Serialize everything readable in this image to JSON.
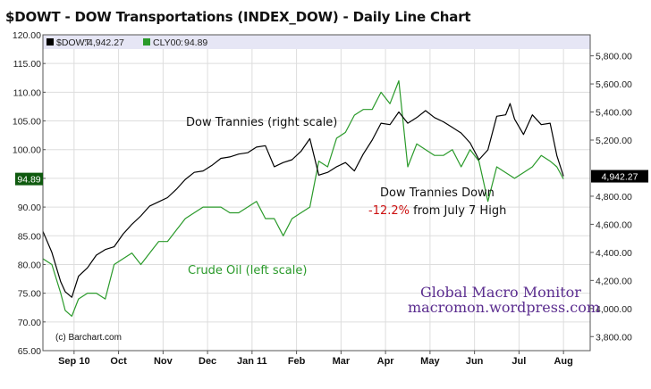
{
  "title": "$DOWT - DOW Transportations (INDEX_DOW) - Daily Line Chart",
  "copyright": "(c) Barchart.com",
  "annotations": {
    "dow_label": "Dow Trannies (right scale)",
    "crude_label": "Crude Oil (left scale)",
    "down_label": "Dow Trannies Down",
    "pct": "-12.2%",
    "pct_rest": " from July 7 High"
  },
  "watermark": {
    "line1": "Global Macro Monitor",
    "line2": "macromon.wordpress.com"
  },
  "colors": {
    "dowt": "#000000",
    "crude": "#2a9a2a",
    "legend_bg": "#e6e6f5",
    "badge_green": "#0f5a0f",
    "badge_black": "#000000",
    "pct_red": "#cc1111"
  },
  "chart_data": {
    "type": "line",
    "title": "$DOWT - DOW Transportations (INDEX_DOW) - Daily Line Chart",
    "legend": [
      {
        "name": "$DOWT",
        "value_label": "4,942.27"
      },
      {
        "name": "CLY00",
        "value_label": "94.89"
      }
    ],
    "left_axis": {
      "ticks": [
        120,
        115,
        110,
        105,
        100,
        95,
        90,
        85,
        80,
        75,
        70,
        65
      ],
      "tick_labels": [
        "120.00",
        "115.00",
        "110.00",
        "105.00",
        "100.00",
        "95.00",
        "90.00",
        "85.00",
        "80.00",
        "75.00",
        "70.00",
        "65.00"
      ],
      "range": [
        65,
        120
      ]
    },
    "right_axis": {
      "ticks": [
        5800,
        5600,
        5400,
        5200,
        4800,
        4600,
        4400,
        4200,
        4000,
        3800
      ],
      "tick_labels": [
        "5,800.00",
        "5,600.00",
        "5,400.00",
        "5,200.00",
        "4,800.00",
        "4,600.00",
        "4,400.00",
        "4,200.00",
        "4,000.00",
        "3,800.00"
      ],
      "range": [
        3700,
        5950
      ]
    },
    "x_labels": [
      "Sep 10",
      "Oct",
      "Nov",
      "Dec",
      "Jan 11",
      "Feb",
      "Mar",
      "Apr",
      "May",
      "Jun",
      "Jul",
      "Aug"
    ],
    "x_label_positions": [
      0.7,
      1.7,
      2.7,
      3.7,
      4.7,
      5.7,
      6.7,
      7.7,
      8.7,
      9.7,
      10.7,
      11.7
    ],
    "x_range": [
      0,
      12.3
    ],
    "badges": {
      "left": "94.89",
      "right": "4,942.27"
    },
    "badge_values": {
      "left": 94.89,
      "right": 4942.27
    },
    "grid": true,
    "series": [
      {
        "name": "$DOWT",
        "axis": "right",
        "points": [
          [
            0.0,
            4550
          ],
          [
            0.2,
            4400
          ],
          [
            0.4,
            4190
          ],
          [
            0.5,
            4120
          ],
          [
            0.65,
            4080
          ],
          [
            0.8,
            4230
          ],
          [
            1.0,
            4290
          ],
          [
            1.2,
            4380
          ],
          [
            1.4,
            4420
          ],
          [
            1.6,
            4440
          ],
          [
            1.8,
            4530
          ],
          [
            2.0,
            4600
          ],
          [
            2.2,
            4660
          ],
          [
            2.4,
            4730
          ],
          [
            2.6,
            4760
          ],
          [
            2.8,
            4790
          ],
          [
            3.0,
            4850
          ],
          [
            3.2,
            4920
          ],
          [
            3.4,
            4970
          ],
          [
            3.6,
            4980
          ],
          [
            3.8,
            5020
          ],
          [
            4.0,
            5070
          ],
          [
            4.2,
            5080
          ],
          [
            4.4,
            5100
          ],
          [
            4.6,
            5110
          ],
          [
            4.8,
            5150
          ],
          [
            5.0,
            5160
          ],
          [
            5.2,
            5010
          ],
          [
            5.4,
            5040
          ],
          [
            5.6,
            5060
          ],
          [
            5.8,
            5120
          ],
          [
            6.0,
            5210
          ],
          [
            6.2,
            4950
          ],
          [
            6.4,
            4970
          ],
          [
            6.6,
            5010
          ],
          [
            6.8,
            5040
          ],
          [
            7.0,
            4980
          ],
          [
            7.2,
            5100
          ],
          [
            7.4,
            5200
          ],
          [
            7.6,
            5320
          ],
          [
            7.8,
            5310
          ],
          [
            8.0,
            5400
          ],
          [
            8.2,
            5320
          ],
          [
            8.4,
            5360
          ],
          [
            8.6,
            5410
          ],
          [
            8.8,
            5360
          ],
          [
            9.0,
            5330
          ],
          [
            9.2,
            5290
          ],
          [
            9.4,
            5250
          ],
          [
            9.6,
            5180
          ],
          [
            9.8,
            5060
          ],
          [
            10.0,
            5130
          ],
          [
            10.2,
            5370
          ],
          [
            10.4,
            5380
          ],
          [
            10.5,
            5460
          ],
          [
            10.6,
            5350
          ],
          [
            10.8,
            5240
          ],
          [
            11.0,
            5380
          ],
          [
            11.2,
            5310
          ],
          [
            11.4,
            5320
          ],
          [
            11.55,
            5090
          ],
          [
            11.7,
            4942.27
          ]
        ]
      },
      {
        "name": "CLY00",
        "axis": "left",
        "points": [
          [
            0.0,
            81
          ],
          [
            0.2,
            80
          ],
          [
            0.4,
            75
          ],
          [
            0.5,
            72
          ],
          [
            0.65,
            71
          ],
          [
            0.8,
            74
          ],
          [
            1.0,
            75
          ],
          [
            1.2,
            75
          ],
          [
            1.4,
            74
          ],
          [
            1.6,
            80
          ],
          [
            1.8,
            81
          ],
          [
            2.0,
            82
          ],
          [
            2.2,
            80
          ],
          [
            2.4,
            82
          ],
          [
            2.6,
            84
          ],
          [
            2.8,
            84
          ],
          [
            3.0,
            86
          ],
          [
            3.2,
            88
          ],
          [
            3.4,
            89
          ],
          [
            3.6,
            90
          ],
          [
            3.8,
            90
          ],
          [
            4.0,
            90
          ],
          [
            4.2,
            89
          ],
          [
            4.4,
            89
          ],
          [
            4.6,
            90
          ],
          [
            4.8,
            91
          ],
          [
            5.0,
            88
          ],
          [
            5.2,
            88
          ],
          [
            5.4,
            85
          ],
          [
            5.6,
            88
          ],
          [
            5.8,
            89
          ],
          [
            6.0,
            90
          ],
          [
            6.2,
            98
          ],
          [
            6.4,
            97
          ],
          [
            6.6,
            102
          ],
          [
            6.8,
            103
          ],
          [
            7.0,
            106
          ],
          [
            7.2,
            107
          ],
          [
            7.4,
            107
          ],
          [
            7.6,
            110
          ],
          [
            7.8,
            108
          ],
          [
            8.0,
            112
          ],
          [
            8.2,
            97
          ],
          [
            8.4,
            101
          ],
          [
            8.6,
            100
          ],
          [
            8.8,
            99
          ],
          [
            9.0,
            99
          ],
          [
            9.2,
            100
          ],
          [
            9.4,
            97
          ],
          [
            9.6,
            100
          ],
          [
            9.8,
            98
          ],
          [
            10.0,
            91
          ],
          [
            10.2,
            97
          ],
          [
            10.4,
            96
          ],
          [
            10.6,
            95
          ],
          [
            10.8,
            96
          ],
          [
            11.0,
            97
          ],
          [
            11.2,
            99
          ],
          [
            11.4,
            98
          ],
          [
            11.55,
            97
          ],
          [
            11.7,
            94.89
          ]
        ]
      }
    ]
  }
}
